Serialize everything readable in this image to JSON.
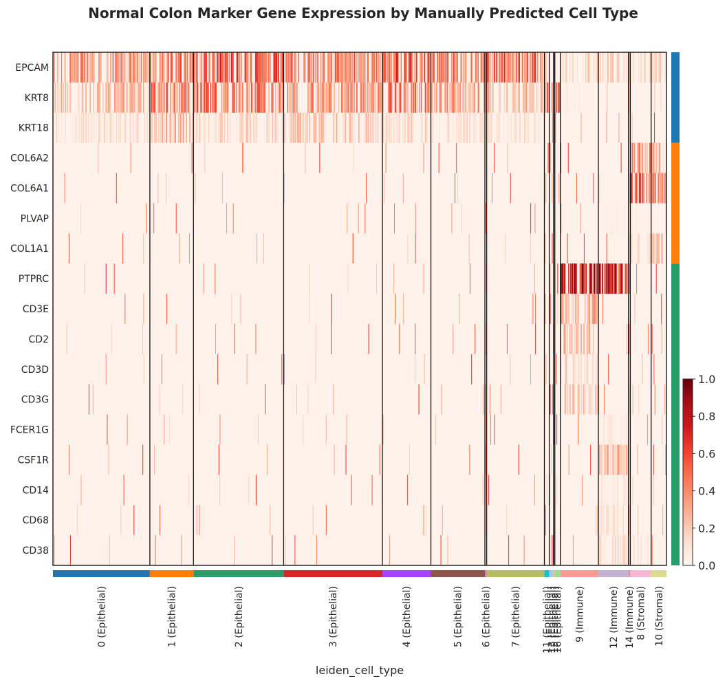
{
  "chart_data": {
    "type": "heatmap",
    "title": "Normal Colon Marker Gene Expression by Manually Predicted Cell Type",
    "xlabel": "leiden_cell_type",
    "genes": [
      "EPCAM",
      "KRT8",
      "KRT18",
      "COL6A2",
      "COL6A1",
      "PLVAP",
      "COL1A1",
      "PTPRC",
      "CD3E",
      "CD2",
      "CD3D",
      "CD3G",
      "FCER1G",
      "CSF1R",
      "CD14",
      "CD68",
      "CD38"
    ],
    "gene_groups": [
      {
        "color": "#1f77b4",
        "genes": [
          "EPCAM",
          "KRT8",
          "KRT18"
        ]
      },
      {
        "color": "#ff7f0e",
        "genes": [
          "COL6A2",
          "COL6A1",
          "PLVAP",
          "COL1A1"
        ]
      },
      {
        "color": "#279e68",
        "genes": [
          "PTPRC",
          "CD3E",
          "CD2",
          "CD3D",
          "CD3G",
          "FCER1G",
          "CSF1R",
          "CD14",
          "CD68",
          "CD38"
        ]
      }
    ],
    "cell_groups": [
      {
        "label": "0 (Epithelial)",
        "color": "#1f77b4",
        "fraction": 0.158
      },
      {
        "label": "1 (Epithelial)",
        "color": "#ff7f0e",
        "fraction": 0.071
      },
      {
        "label": "2 (Epithelial)",
        "color": "#279e68",
        "fraction": 0.147
      },
      {
        "label": "3 (Epithelial)",
        "color": "#d62728",
        "fraction": 0.161
      },
      {
        "label": "4 (Epithelial)",
        "color": "#aa40fc",
        "fraction": 0.079
      },
      {
        "label": "5 (Epithelial)",
        "color": "#8c564b",
        "fraction": 0.088
      },
      {
        "label": "6 (Epithelial)",
        "color": "#e377c2",
        "fraction": 0.003
      },
      {
        "label": "7 (Epithelial)",
        "color": "#b5bd61",
        "fraction": 0.094
      },
      {
        "label": "11 (Epithelial)",
        "color": "#17becf",
        "fraction": 0.008
      },
      {
        "label": "13 (Epithelial)",
        "color": "#aec7e8",
        "fraction": 0.007
      },
      {
        "label": "15 (Epithelial)",
        "color": "#ffbb78",
        "fraction": 0.002
      },
      {
        "label": "16 (Epithelial)",
        "color": "#98df8a",
        "fraction": 0.009
      },
      {
        "label": "9 (Immune)",
        "color": "#ff9896",
        "fraction": 0.062
      },
      {
        "label": "12 (Immune)",
        "color": "#c5b0d5",
        "fraction": 0.049
      },
      {
        "label": "14 (Immune)",
        "color": "#c49c94",
        "fraction": 0.003
      },
      {
        "label": "8 (Stromal)",
        "color": "#f7b6d2",
        "fraction": 0.034
      },
      {
        "label": "10 (Stromal)",
        "color": "#dbdb8d",
        "fraction": 0.025
      }
    ],
    "expression_pattern": {
      "EPCAM": {
        "0": 0.45,
        "1": 0.55,
        "2": 0.6,
        "3": 0.5,
        "4": 0.6,
        "5": 0.5,
        "7": 0.55,
        "9": 0.2,
        "12": 0.2,
        "8": 0.2,
        "10": 0.2
      },
      "KRT8": {
        "0": 0.3,
        "1": 0.5,
        "2": 0.5,
        "3": 0.4,
        "4": 0.5,
        "5": 0.4,
        "7": 0.3,
        "11": 0.5,
        "13": 0.5,
        "16": 0.5,
        "9": 0.05
      },
      "KRT18": {
        "0": 0.15,
        "1": 0.3,
        "2": 0.2,
        "3": 0.25,
        "4": 0.2,
        "5": 0.15,
        "7": 0.15
      },
      "COL6A2": {
        "8": 0.4,
        "10": 0.35
      },
      "COL6A1": {
        "8": 0.6,
        "10": 0.6
      },
      "PLVAP": {
        "12": 0.05,
        "8": 0.05
      },
      "COL1A1": {
        "8": 0.2,
        "10": 0.25
      },
      "PTPRC": {
        "9": 0.85,
        "12": 0.8,
        "14": 0.5
      },
      "CD3E": {
        "9": 0.35
      },
      "CD2": {
        "9": 0.3
      },
      "CD3D": {
        "9": 0.2
      },
      "CD3G": {
        "9": 0.25
      },
      "FCER1G": {
        "12": 0.08
      },
      "CSF1R": {
        "12": 0.3
      },
      "CD14": {
        "12": 0.1
      },
      "CD68": {
        "12": 0.15
      },
      "CD38": {
        "12": 0.15,
        "14": 0.15,
        "8": 0.1
      }
    },
    "colorbar": {
      "colormap": "Reds",
      "min": 0.0,
      "max": 1.0,
      "ticks": [
        "0.0",
        "0.2",
        "0.4",
        "0.6",
        "0.8",
        "1.0"
      ]
    },
    "grid": false
  }
}
